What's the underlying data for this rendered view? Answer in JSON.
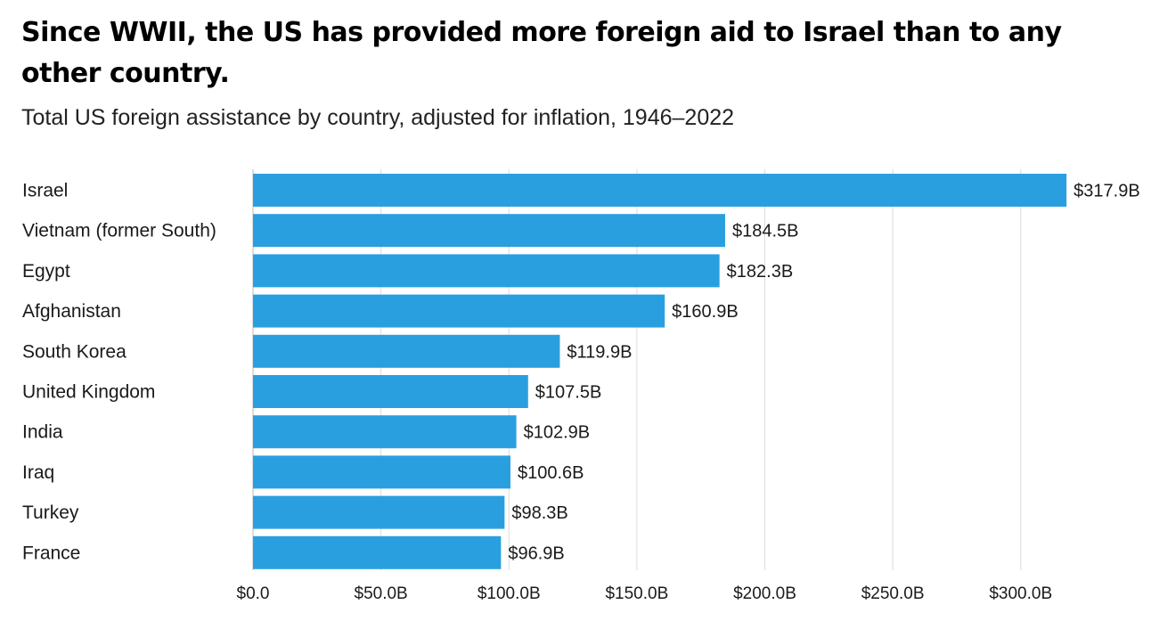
{
  "chart_data": {
    "type": "bar",
    "orientation": "horizontal",
    "title": "Since WWII, the US has provided more foreign aid to Israel than to any other country.",
    "subtitle": "Total US foreign assistance by country, adjusted for inflation, 1946–2022",
    "categories": [
      "Israel",
      "Vietnam (former South)",
      "Egypt",
      "Afghanistan",
      "South Korea",
      "United Kingdom",
      "India",
      "Iraq",
      "Turkey",
      "France"
    ],
    "values": [
      317.9,
      184.5,
      182.3,
      160.9,
      119.9,
      107.5,
      102.9,
      100.6,
      98.3,
      96.9
    ],
    "value_labels": [
      "$317.9B",
      "$184.5B",
      "$182.3B",
      "$160.9B",
      "$119.9B",
      "$107.5B",
      "$102.9B",
      "$100.6B",
      "$98.3B",
      "$96.9B"
    ],
    "xticks": [
      0,
      50,
      100,
      150,
      200,
      250,
      300
    ],
    "xtick_labels": [
      "$0.0",
      "$50.0B",
      "$100.0B",
      "$150.0B",
      "$200.0B",
      "$250.0B",
      "$300.0B"
    ],
    "xlim": [
      0,
      317.9
    ],
    "grid": "vertical",
    "bar_color": "#2a9fe0",
    "grid_color": "#dddddd"
  }
}
